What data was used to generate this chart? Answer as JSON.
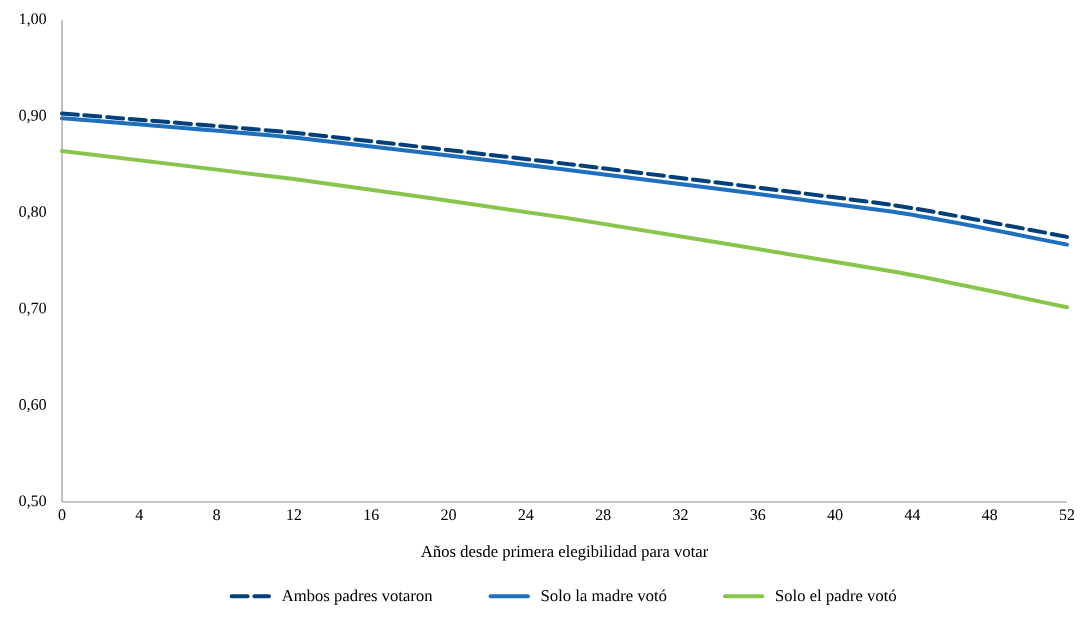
{
  "chart_data": {
    "type": "line",
    "xlabel": "Años desde primera elegibilidad para votar",
    "x": [
      0,
      12,
      26,
      43,
      52
    ],
    "series": [
      {
        "name": "Ambos  padres votaron",
        "color": "#003f7a",
        "line_style": "dashed",
        "values": [
          0.903,
          0.883,
          0.851,
          0.808,
          0.775
        ]
      },
      {
        "name": "Solo  la madre votó",
        "color": "#1f6fbf",
        "line_style": "solid",
        "values": [
          0.898,
          0.878,
          0.845,
          0.801,
          0.767
        ]
      },
      {
        "name": "Solo el padre votó",
        "color": "#88c54c",
        "line_style": "solid",
        "values": [
          0.864,
          0.835,
          0.795,
          0.739,
          0.702
        ]
      }
    ],
    "xlim": [
      0,
      52
    ],
    "xticks": [
      0,
      4,
      8,
      12,
      16,
      20,
      24,
      28,
      32,
      36,
      40,
      44,
      48,
      52
    ],
    "ylim": [
      0.5,
      1.0
    ],
    "yticks": [
      {
        "value": 0.5,
        "label": "0,50"
      },
      {
        "value": 0.6,
        "label": "0,60"
      },
      {
        "value": 0.7,
        "label": "0,70"
      },
      {
        "value": 0.8,
        "label": "0,80"
      },
      {
        "value": 0.9,
        "label": "0,90"
      },
      {
        "value": 1.0,
        "label": "1,00"
      }
    ],
    "grid": false,
    "legend": "bottom",
    "marker": "none"
  }
}
